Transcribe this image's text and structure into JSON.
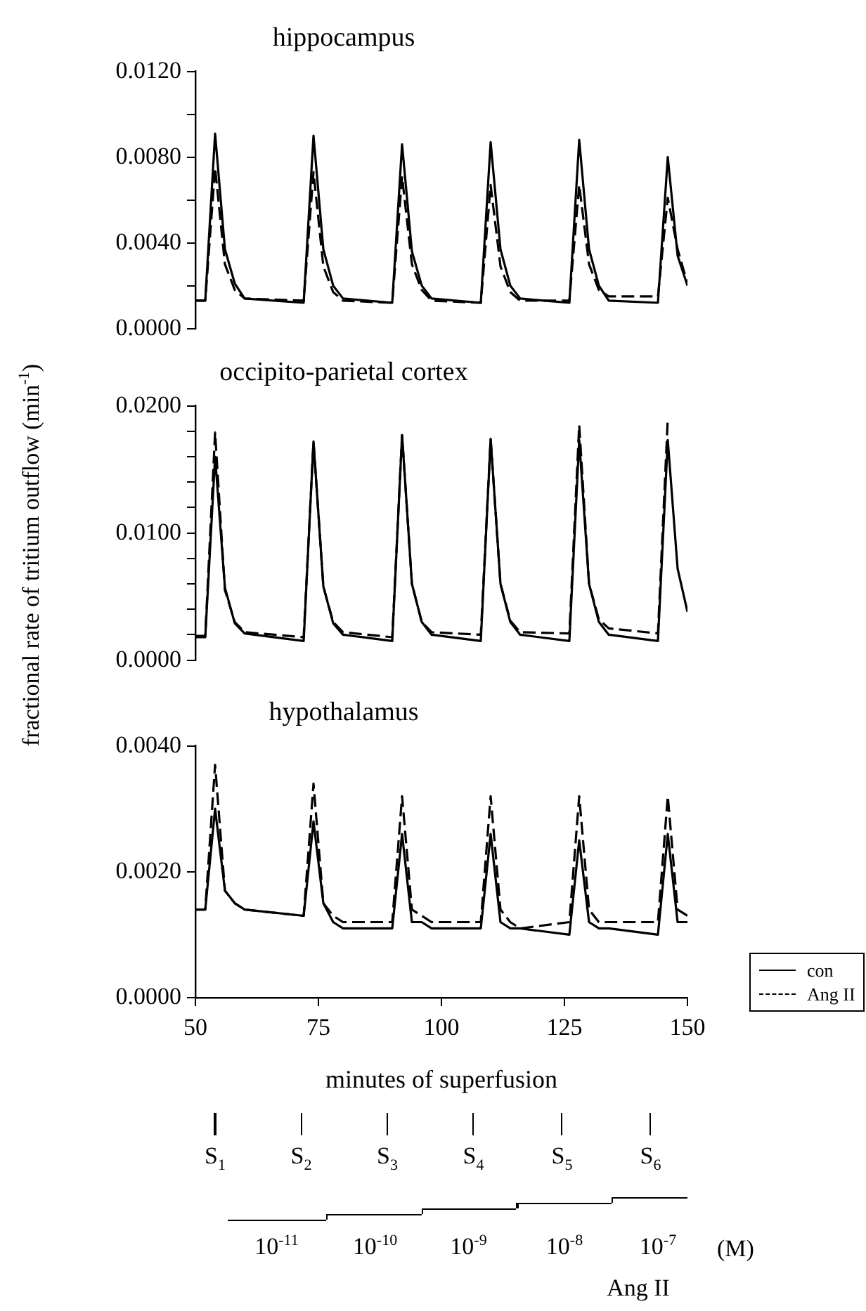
{
  "chart_data": [
    {
      "type": "line",
      "title": "hippocampus",
      "x": [
        50,
        52,
        54,
        56,
        58,
        60,
        72,
        74,
        76,
        78,
        80,
        90,
        92,
        94,
        96,
        98,
        108,
        110,
        112,
        114,
        116,
        126,
        128,
        130,
        132,
        134,
        144,
        146,
        148,
        150
      ],
      "xlim": [
        50,
        150
      ],
      "ylim": [
        0,
        0.012
      ],
      "yticks": [
        {
          "value": 0,
          "label": "0.0000"
        },
        {
          "value": 0.002,
          "label": null
        },
        {
          "value": 0.004,
          "label": "0.0040"
        },
        {
          "value": 0.006,
          "label": null
        },
        {
          "value": 0.008,
          "label": "0.0080"
        },
        {
          "value": 0.01,
          "label": null
        },
        {
          "value": 0.012,
          "label": "0.0120"
        }
      ],
      "tick_labels": "y",
      "grid": false,
      "marker": "none",
      "series": [
        {
          "color": "#000000",
          "line_style": "solid",
          "values": [
            0.0013,
            0.0013,
            0.0091,
            0.0037,
            0.0021,
            0.0014,
            0.0012,
            0.009,
            0.0037,
            0.002,
            0.0014,
            0.0012,
            0.0086,
            0.0036,
            0.002,
            0.0014,
            0.0012,
            0.0087,
            0.0037,
            0.002,
            0.0014,
            0.0012,
            0.0088,
            0.0037,
            0.002,
            0.0013,
            0.0012,
            0.008,
            0.0034,
            0.002
          ]
        },
        {
          "color": "#000000",
          "line_style": "dashed",
          "values": [
            0.0013,
            0.0013,
            0.0075,
            0.003,
            0.0018,
            0.0014,
            0.0013,
            0.0073,
            0.0029,
            0.0017,
            0.0013,
            0.0012,
            0.0071,
            0.003,
            0.0018,
            0.0013,
            0.0012,
            0.0067,
            0.0029,
            0.0017,
            0.0013,
            0.0013,
            0.0067,
            0.003,
            0.0018,
            0.0015,
            0.0015,
            0.0061,
            0.0037,
            0.0021
          ]
        }
      ]
    },
    {
      "type": "line",
      "title": "occipito-parietal cortex",
      "ylabel": "fractional rate of tritium outflow (min$^{-1}$)",
      "x": [
        50,
        52,
        54,
        56,
        58,
        60,
        72,
        74,
        76,
        78,
        80,
        90,
        92,
        94,
        96,
        98,
        108,
        110,
        112,
        114,
        116,
        126,
        128,
        130,
        132,
        134,
        144,
        146,
        148,
        150
      ],
      "xlim": [
        50,
        150
      ],
      "ylim": [
        0,
        0.02
      ],
      "yticks": [
        {
          "value": 0,
          "label": "0.0000"
        },
        {
          "value": 0.002,
          "label": null
        },
        {
          "value": 0.004,
          "label": null
        },
        {
          "value": 0.006,
          "label": null
        },
        {
          "value": 0.008,
          "label": null
        },
        {
          "value": 0.01,
          "label": "0.0100"
        },
        {
          "value": 0.012,
          "label": null
        },
        {
          "value": 0.014,
          "label": null
        },
        {
          "value": 0.016,
          "label": null
        },
        {
          "value": 0.018,
          "label": null
        },
        {
          "value": 0.02,
          "label": "0.0200"
        }
      ],
      "tick_labels": "y",
      "grid": false,
      "marker": "none",
      "series": [
        {
          "color": "#000000",
          "line_style": "solid",
          "values": [
            0.0018,
            0.0018,
            0.016,
            0.0057,
            0.0029,
            0.0021,
            0.0015,
            0.0172,
            0.0058,
            0.0029,
            0.002,
            0.0015,
            0.0177,
            0.006,
            0.003,
            0.002,
            0.0015,
            0.0174,
            0.006,
            0.003,
            0.002,
            0.0015,
            0.0173,
            0.006,
            0.003,
            0.002,
            0.0015,
            0.0173,
            0.0072,
            0.0038
          ]
        },
        {
          "color": "#000000",
          "line_style": "dashed",
          "values": [
            0.0019,
            0.0019,
            0.0179,
            0.0055,
            0.003,
            0.0022,
            0.0018,
            0.0172,
            0.0058,
            0.003,
            0.0022,
            0.0018,
            0.0177,
            0.006,
            0.003,
            0.0022,
            0.002,
            0.0174,
            0.006,
            0.0031,
            0.0022,
            0.0021,
            0.0185,
            0.006,
            0.0032,
            0.0025,
            0.0021,
            0.019,
            null,
            null
          ]
        }
      ]
    },
    {
      "type": "line",
      "title": "hypothalamus",
      "xlabel": "minutes of superfusion",
      "x": [
        50,
        52,
        54,
        56,
        58,
        60,
        72,
        74,
        76,
        78,
        80,
        90,
        92,
        94,
        96,
        98,
        108,
        110,
        112,
        114,
        116,
        126,
        128,
        130,
        132,
        134,
        144,
        146,
        148,
        150
      ],
      "xlim": [
        50,
        150
      ],
      "xticks": [
        50,
        75,
        100,
        125,
        150
      ],
      "ylim": [
        0,
        0.004
      ],
      "yticks": [
        {
          "value": 0,
          "label": "0.0000"
        },
        {
          "value": 0.002,
          "label": "0.0020"
        },
        {
          "value": 0.004,
          "label": "0.0040"
        }
      ],
      "grid": false,
      "marker": "none",
      "legend": "bottom right",
      "series": [
        {
          "name": "con",
          "color": "#000000",
          "line_style": "solid",
          "values": [
            0.0014,
            0.0014,
            0.003,
            0.0017,
            0.0015,
            0.0014,
            0.0013,
            0.0028,
            0.0015,
            0.0012,
            0.0011,
            0.0011,
            0.0026,
            0.0012,
            0.0012,
            0.0011,
            0.0011,
            0.0026,
            0.0012,
            0.0011,
            0.0011,
            0.001,
            0.0025,
            0.0012,
            0.0011,
            0.0011,
            0.001,
            0.0026,
            0.0012,
            0.0012
          ]
        },
        {
          "name": "Ang II",
          "color": "#000000",
          "line_style": "dashed",
          "values": [
            0.0014,
            0.0014,
            0.0037,
            0.0017,
            0.0015,
            0.0014,
            0.0013,
            0.0034,
            0.0015,
            0.0013,
            0.0012,
            0.0012,
            0.0032,
            0.0014,
            0.0013,
            0.0012,
            0.0012,
            0.0032,
            0.0014,
            0.0012,
            0.0011,
            0.0012,
            0.0032,
            0.0014,
            0.0012,
            0.0012,
            0.0012,
            0.0032,
            0.0014,
            0.0013
          ]
        }
      ],
      "annotations": [
        "S$_{1}$",
        "S$_{2}$",
        "S$_{3}$",
        "S$_{4}$",
        "S$_{5}$",
        "S$_{6}$",
        "10$^{-11}$",
        "10$^{-10}$",
        "10$^{-9}$",
        "10$^{-8}$",
        "10$^{-7}$",
        "(M)",
        "Ang II"
      ]
    }
  ]
}
